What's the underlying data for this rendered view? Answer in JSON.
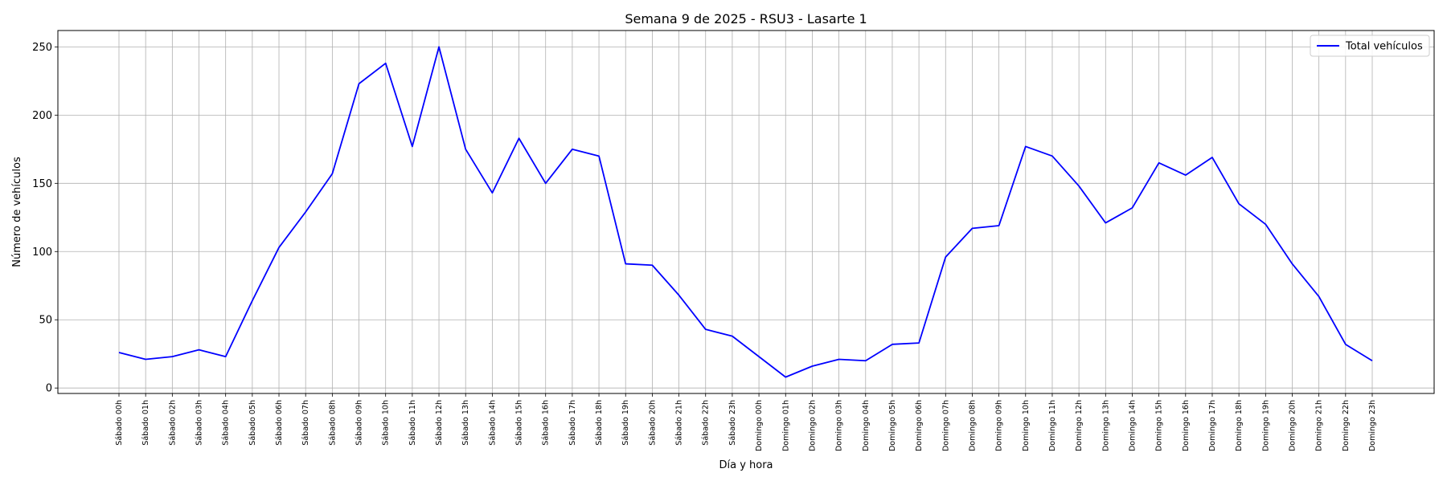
{
  "chart_data": {
    "type": "line",
    "title": "Semana 9 de 2025 - RSU3 - Lasarte 1",
    "xlabel": "Día y hora",
    "ylabel": "Número de vehículos",
    "categories": [
      "Sábado 00h",
      "Sábado 01h",
      "Sábado 02h",
      "Sábado 03h",
      "Sábado 04h",
      "Sábado 05h",
      "Sábado 06h",
      "Sábado 07h",
      "Sábado 08h",
      "Sábado 09h",
      "Sábado 10h",
      "Sábado 11h",
      "Sábado 12h",
      "Sábado 13h",
      "Sábado 14h",
      "Sábado 15h",
      "Sábado 16h",
      "Sábado 17h",
      "Sábado 18h",
      "Sábado 19h",
      "Sábado 20h",
      "Sábado 21h",
      "Sábado 22h",
      "Sábado 23h",
      "Domingo 00h",
      "Domingo 01h",
      "Domingo 02h",
      "Domingo 03h",
      "Domingo 04h",
      "Domingo 05h",
      "Domingo 06h",
      "Domingo 07h",
      "Domingo 08h",
      "Domingo 09h",
      "Domingo 10h",
      "Domingo 11h",
      "Domingo 12h",
      "Domingo 13h",
      "Domingo 14h",
      "Domingo 15h",
      "Domingo 16h",
      "Domingo 17h",
      "Domingo 18h",
      "Domingo 19h",
      "Domingo 20h",
      "Domingo 21h",
      "Domingo 22h",
      "Domingo 23h"
    ],
    "series": [
      {
        "name": "Total vehículos",
        "color": "#0000ff",
        "values": [
          26,
          21,
          23,
          28,
          23,
          64,
          103,
          129,
          157,
          223,
          238,
          177,
          250,
          175,
          143,
          183,
          150,
          175,
          170,
          91,
          90,
          68,
          43,
          38,
          23,
          8,
          16,
          21,
          20,
          32,
          33,
          96,
          117,
          119,
          177,
          170,
          148,
          121,
          132,
          165,
          156,
          169,
          135,
          120,
          91,
          67,
          32,
          20
        ]
      }
    ],
    "yticks": [
      0,
      50,
      100,
      150,
      200,
      250
    ],
    "ylim": [
      -4,
      262
    ],
    "grid": true,
    "legend_position": "top-right"
  }
}
